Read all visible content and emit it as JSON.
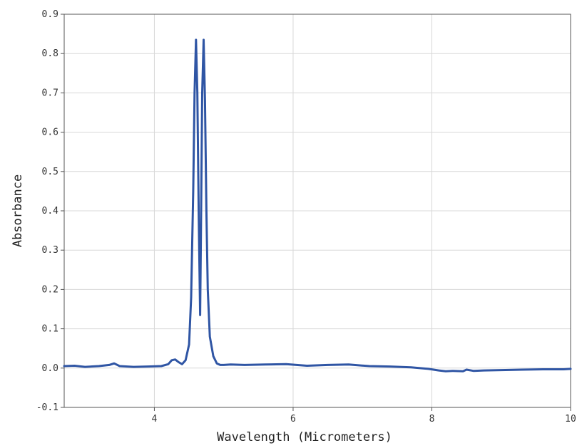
{
  "chart_data": {
    "type": "line",
    "title": "",
    "xlabel": "Wavelength (Micrometers)",
    "ylabel": "Absorbance",
    "xlim": [
      2.7,
      10.0
    ],
    "ylim": [
      -0.1,
      0.9
    ],
    "grid": true,
    "x_ticks": [
      4,
      6,
      8,
      10
    ],
    "x_tick_labels": [
      "4",
      "6",
      "8",
      "10"
    ],
    "y_ticks": [
      -0.1,
      0.0,
      0.1,
      0.2,
      0.3,
      0.4,
      0.5,
      0.6,
      0.7,
      0.8,
      0.9
    ],
    "y_tick_labels": [
      "-0.1",
      "0.0",
      "0.1",
      "0.2",
      "0.3",
      "0.4",
      "0.5",
      "0.6",
      "0.7",
      "0.8",
      "0.9"
    ],
    "colors": {
      "line": "#2f55a4",
      "grid": "#d8d8d8",
      "axis": "#555555"
    },
    "series": [
      {
        "x": [
          2.7,
          2.85,
          3.0,
          3.2,
          3.35,
          3.42,
          3.5,
          3.7,
          3.9,
          4.1,
          4.2,
          4.25,
          4.3,
          4.35,
          4.4,
          4.45,
          4.5,
          4.53,
          4.56,
          4.58,
          4.6,
          4.62,
          4.64,
          4.66,
          4.67,
          4.69,
          4.71,
          4.73,
          4.75,
          4.77,
          4.8,
          4.85,
          4.9,
          4.95,
          5.0,
          5.1,
          5.3,
          5.6,
          5.9,
          6.2,
          6.5,
          6.8,
          7.1,
          7.4,
          7.7,
          7.95,
          8.1,
          8.2,
          8.3,
          8.45,
          8.5,
          8.6,
          8.75,
          9.0,
          9.3,
          9.6,
          9.9,
          10.0
        ],
        "y": [
          0.005,
          0.006,
          0.003,
          0.005,
          0.008,
          0.012,
          0.005,
          0.003,
          0.004,
          0.005,
          0.01,
          0.02,
          0.022,
          0.015,
          0.01,
          0.02,
          0.06,
          0.18,
          0.45,
          0.7,
          0.835,
          0.7,
          0.38,
          0.135,
          0.32,
          0.7,
          0.835,
          0.68,
          0.4,
          0.2,
          0.08,
          0.03,
          0.012,
          0.008,
          0.008,
          0.009,
          0.008,
          0.009,
          0.01,
          0.006,
          0.008,
          0.009,
          0.005,
          0.004,
          0.002,
          -0.002,
          -0.006,
          -0.008,
          -0.007,
          -0.008,
          -0.004,
          -0.007,
          -0.006,
          -0.005,
          -0.004,
          -0.003,
          -0.003,
          -0.002
        ]
      }
    ]
  }
}
